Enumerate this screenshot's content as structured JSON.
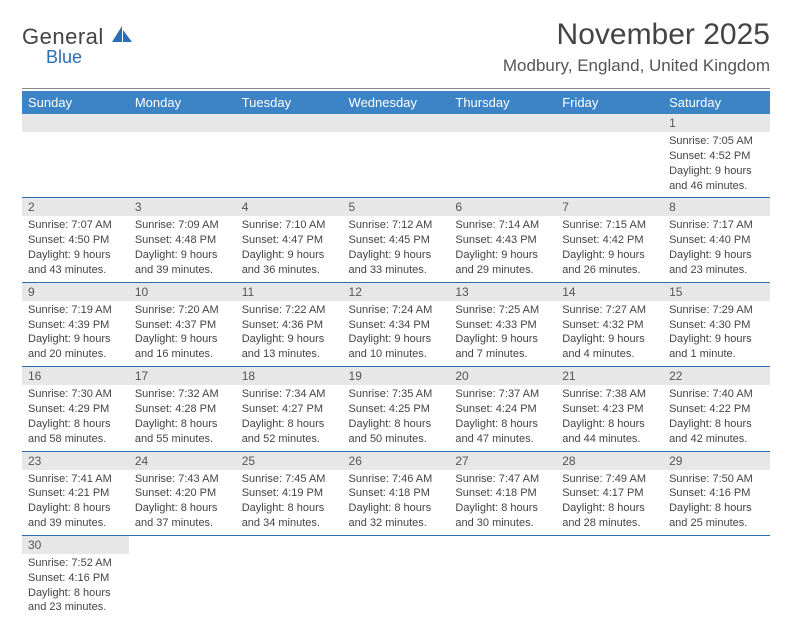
{
  "logo": {
    "main": "General",
    "sub": "Blue"
  },
  "title": "November 2025",
  "location": "Modbury, England, United Kingdom",
  "colors": {
    "header_bg": "#3c84c6",
    "header_text": "#ffffff",
    "daybar_bg": "#e7e7e7",
    "border": "#2a6fb5",
    "logo_blue": "#2a6fb5"
  },
  "weekdays": [
    "Sunday",
    "Monday",
    "Tuesday",
    "Wednesday",
    "Thursday",
    "Friday",
    "Saturday"
  ],
  "weeks": [
    [
      null,
      null,
      null,
      null,
      null,
      null,
      {
        "n": "1",
        "sunrise": "Sunrise: 7:05 AM",
        "sunset": "Sunset: 4:52 PM",
        "daylight": "Daylight: 9 hours and 46 minutes."
      }
    ],
    [
      {
        "n": "2",
        "sunrise": "Sunrise: 7:07 AM",
        "sunset": "Sunset: 4:50 PM",
        "daylight": "Daylight: 9 hours and 43 minutes."
      },
      {
        "n": "3",
        "sunrise": "Sunrise: 7:09 AM",
        "sunset": "Sunset: 4:48 PM",
        "daylight": "Daylight: 9 hours and 39 minutes."
      },
      {
        "n": "4",
        "sunrise": "Sunrise: 7:10 AM",
        "sunset": "Sunset: 4:47 PM",
        "daylight": "Daylight: 9 hours and 36 minutes."
      },
      {
        "n": "5",
        "sunrise": "Sunrise: 7:12 AM",
        "sunset": "Sunset: 4:45 PM",
        "daylight": "Daylight: 9 hours and 33 minutes."
      },
      {
        "n": "6",
        "sunrise": "Sunrise: 7:14 AM",
        "sunset": "Sunset: 4:43 PM",
        "daylight": "Daylight: 9 hours and 29 minutes."
      },
      {
        "n": "7",
        "sunrise": "Sunrise: 7:15 AM",
        "sunset": "Sunset: 4:42 PM",
        "daylight": "Daylight: 9 hours and 26 minutes."
      },
      {
        "n": "8",
        "sunrise": "Sunrise: 7:17 AM",
        "sunset": "Sunset: 4:40 PM",
        "daylight": "Daylight: 9 hours and 23 minutes."
      }
    ],
    [
      {
        "n": "9",
        "sunrise": "Sunrise: 7:19 AM",
        "sunset": "Sunset: 4:39 PM",
        "daylight": "Daylight: 9 hours and 20 minutes."
      },
      {
        "n": "10",
        "sunrise": "Sunrise: 7:20 AM",
        "sunset": "Sunset: 4:37 PM",
        "daylight": "Daylight: 9 hours and 16 minutes."
      },
      {
        "n": "11",
        "sunrise": "Sunrise: 7:22 AM",
        "sunset": "Sunset: 4:36 PM",
        "daylight": "Daylight: 9 hours and 13 minutes."
      },
      {
        "n": "12",
        "sunrise": "Sunrise: 7:24 AM",
        "sunset": "Sunset: 4:34 PM",
        "daylight": "Daylight: 9 hours and 10 minutes."
      },
      {
        "n": "13",
        "sunrise": "Sunrise: 7:25 AM",
        "sunset": "Sunset: 4:33 PM",
        "daylight": "Daylight: 9 hours and 7 minutes."
      },
      {
        "n": "14",
        "sunrise": "Sunrise: 7:27 AM",
        "sunset": "Sunset: 4:32 PM",
        "daylight": "Daylight: 9 hours and 4 minutes."
      },
      {
        "n": "15",
        "sunrise": "Sunrise: 7:29 AM",
        "sunset": "Sunset: 4:30 PM",
        "daylight": "Daylight: 9 hours and 1 minute."
      }
    ],
    [
      {
        "n": "16",
        "sunrise": "Sunrise: 7:30 AM",
        "sunset": "Sunset: 4:29 PM",
        "daylight": "Daylight: 8 hours and 58 minutes."
      },
      {
        "n": "17",
        "sunrise": "Sunrise: 7:32 AM",
        "sunset": "Sunset: 4:28 PM",
        "daylight": "Daylight: 8 hours and 55 minutes."
      },
      {
        "n": "18",
        "sunrise": "Sunrise: 7:34 AM",
        "sunset": "Sunset: 4:27 PM",
        "daylight": "Daylight: 8 hours and 52 minutes."
      },
      {
        "n": "19",
        "sunrise": "Sunrise: 7:35 AM",
        "sunset": "Sunset: 4:25 PM",
        "daylight": "Daylight: 8 hours and 50 minutes."
      },
      {
        "n": "20",
        "sunrise": "Sunrise: 7:37 AM",
        "sunset": "Sunset: 4:24 PM",
        "daylight": "Daylight: 8 hours and 47 minutes."
      },
      {
        "n": "21",
        "sunrise": "Sunrise: 7:38 AM",
        "sunset": "Sunset: 4:23 PM",
        "daylight": "Daylight: 8 hours and 44 minutes."
      },
      {
        "n": "22",
        "sunrise": "Sunrise: 7:40 AM",
        "sunset": "Sunset: 4:22 PM",
        "daylight": "Daylight: 8 hours and 42 minutes."
      }
    ],
    [
      {
        "n": "23",
        "sunrise": "Sunrise: 7:41 AM",
        "sunset": "Sunset: 4:21 PM",
        "daylight": "Daylight: 8 hours and 39 minutes."
      },
      {
        "n": "24",
        "sunrise": "Sunrise: 7:43 AM",
        "sunset": "Sunset: 4:20 PM",
        "daylight": "Daylight: 8 hours and 37 minutes."
      },
      {
        "n": "25",
        "sunrise": "Sunrise: 7:45 AM",
        "sunset": "Sunset: 4:19 PM",
        "daylight": "Daylight: 8 hours and 34 minutes."
      },
      {
        "n": "26",
        "sunrise": "Sunrise: 7:46 AM",
        "sunset": "Sunset: 4:18 PM",
        "daylight": "Daylight: 8 hours and 32 minutes."
      },
      {
        "n": "27",
        "sunrise": "Sunrise: 7:47 AM",
        "sunset": "Sunset: 4:18 PM",
        "daylight": "Daylight: 8 hours and 30 minutes."
      },
      {
        "n": "28",
        "sunrise": "Sunrise: 7:49 AM",
        "sunset": "Sunset: 4:17 PM",
        "daylight": "Daylight: 8 hours and 28 minutes."
      },
      {
        "n": "29",
        "sunrise": "Sunrise: 7:50 AM",
        "sunset": "Sunset: 4:16 PM",
        "daylight": "Daylight: 8 hours and 25 minutes."
      }
    ],
    [
      {
        "n": "30",
        "sunrise": "Sunrise: 7:52 AM",
        "sunset": "Sunset: 4:16 PM",
        "daylight": "Daylight: 8 hours and 23 minutes."
      },
      null,
      null,
      null,
      null,
      null,
      null
    ]
  ]
}
